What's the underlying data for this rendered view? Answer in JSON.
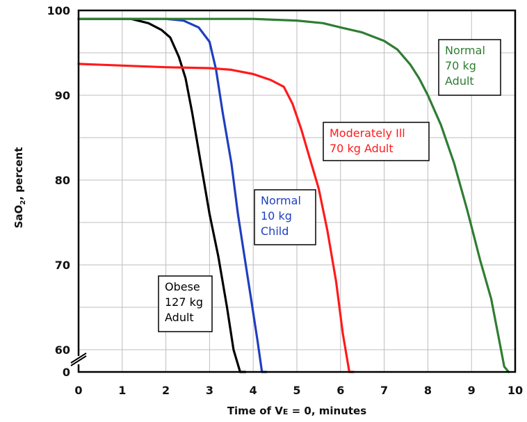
{
  "chart_data": {
    "type": "line",
    "xlabel": {
      "prefix": "Time of V",
      "sub": "E",
      "suffix": " = 0, minutes"
    },
    "ylabel": {
      "prefix": "SaO",
      "sub": "2",
      "suffix": ", percent"
    },
    "xlim": [
      0,
      10
    ],
    "ylim_break": [
      0,
      58
    ],
    "ylim": [
      58,
      100
    ],
    "x_ticks": [
      "0",
      "1",
      "2",
      "3",
      "4",
      "5",
      "6",
      "7",
      "8",
      "9",
      "10"
    ],
    "y_ticks": [
      {
        "value": 0,
        "label": "0"
      },
      {
        "value": 60,
        "label": "60"
      },
      {
        "value": 70,
        "label": "70"
      },
      {
        "value": 80,
        "label": "80"
      },
      {
        "value": 90,
        "label": "90"
      },
      {
        "value": 100,
        "label": "100"
      }
    ],
    "grid": true,
    "axis_break": true,
    "series": [
      {
        "label_lines": [
          "Obese",
          "127 kg",
          "Adult"
        ],
        "color": "#000000",
        "label_color": "#000000",
        "x": [
          0,
          1.2,
          1.6,
          1.9,
          2.1,
          2.3,
          2.45,
          2.6,
          2.8,
          3.0,
          3.2,
          3.4,
          3.55,
          3.7,
          3.82
        ],
        "y": [
          99,
          99,
          98.5,
          97.7,
          96.8,
          94.5,
          92,
          88,
          82,
          76,
          71,
          65,
          60,
          55,
          52
        ]
      },
      {
        "label_lines": [
          "Normal",
          "10 kg",
          "Child"
        ],
        "color": "#1f3fbf",
        "label_color": "#1f3fbf",
        "x": [
          0,
          1.4,
          2.0,
          2.4,
          2.75,
          3.0,
          3.15,
          3.3,
          3.5,
          3.65,
          3.8,
          3.95,
          4.1,
          4.2,
          4.3
        ],
        "y": [
          99,
          99,
          99,
          98.8,
          98,
          96.3,
          93,
          88,
          82,
          76,
          71,
          66,
          61,
          57,
          52
        ]
      },
      {
        "label_lines": [
          "Moderately Ill",
          "70 kg Adult"
        ],
        "color": "#ff1a1a",
        "label_color": "#ff1a1a",
        "x": [
          0,
          1.0,
          2.0,
          3.0,
          3.5,
          4.0,
          4.4,
          4.7,
          4.9,
          5.1,
          5.3,
          5.5,
          5.7,
          5.9,
          6.05,
          6.2,
          6.3
        ],
        "y": [
          93.7,
          93.5,
          93.3,
          93.2,
          93.0,
          92.5,
          91.8,
          91.0,
          89.0,
          86.0,
          82.5,
          79.0,
          74.0,
          68.0,
          62.0,
          56.0,
          52
        ]
      },
      {
        "label_lines": [
          "Normal",
          "70 kg",
          "Adult"
        ],
        "color": "#2e7d32",
        "label_color": "#2e7d32",
        "x": [
          0,
          2.0,
          4.0,
          5.0,
          5.6,
          6.0,
          6.5,
          7.0,
          7.3,
          7.6,
          7.8,
          8.0,
          8.3,
          8.6,
          8.9,
          9.2,
          9.45,
          9.6,
          9.75,
          9.85
        ],
        "y": [
          99,
          99,
          99,
          98.8,
          98.5,
          98.0,
          97.4,
          96.4,
          95.4,
          93.6,
          92.0,
          90.0,
          86.5,
          82.0,
          76.5,
          70.5,
          66.0,
          62.0,
          58.0,
          52
        ]
      }
    ]
  }
}
